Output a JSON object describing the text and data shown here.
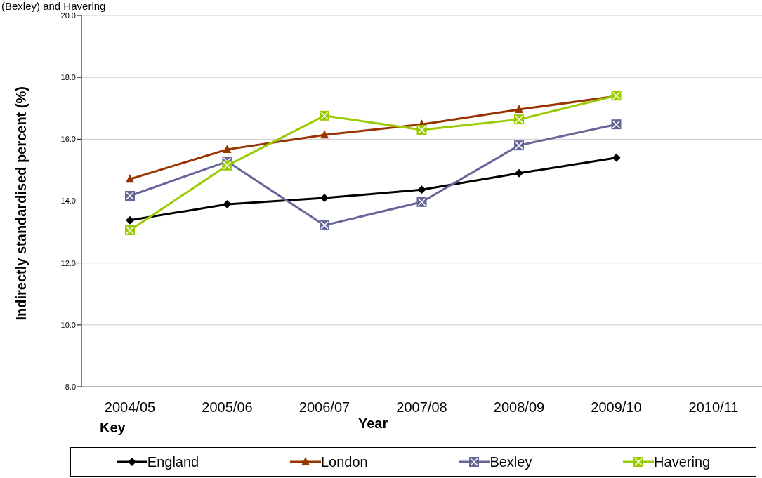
{
  "chart_data": {
    "type": "line",
    "title": "(Bexley) and Havering",
    "xlabel": "Year",
    "ylabel": "Indirectly standardised percent (%)",
    "legend_title": "Key",
    "categories": [
      "2004/05",
      "2005/06",
      "2006/07",
      "2007/08",
      "2008/09",
      "2009/10",
      "2010/11"
    ],
    "series": [
      {
        "name": "England",
        "color": "#000000",
        "marker": "diamond",
        "values": [
          13.38,
          13.9,
          14.1,
          14.37,
          14.9,
          15.4,
          null
        ]
      },
      {
        "name": "London",
        "color": "#993300",
        "marker": "triangle",
        "values": [
          14.71,
          15.67,
          16.14,
          16.48,
          16.96,
          17.39,
          null
        ]
      },
      {
        "name": "Bexley",
        "color": "#666699",
        "marker": "square",
        "values": [
          14.17,
          15.28,
          13.22,
          13.97,
          15.8,
          16.48,
          null
        ]
      },
      {
        "name": "Havering",
        "color": "#99cc00",
        "marker": "square",
        "values": [
          13.06,
          15.15,
          16.76,
          16.3,
          16.64,
          17.41,
          null
        ]
      }
    ],
    "ylim": [
      8,
      20
    ],
    "yticks": [
      {
        "value": 8,
        "label": "8.0"
      },
      {
        "value": 10,
        "label": "10.0"
      },
      {
        "value": 12,
        "label": "12.0"
      },
      {
        "value": 14,
        "label": "14.0"
      },
      {
        "value": 16,
        "label": "16.0"
      },
      {
        "value": 18,
        "label": "18.0"
      },
      {
        "value": 20,
        "label": "20.0"
      }
    ],
    "grid": "y",
    "legend": "bottom",
    "line_style": "solid"
  }
}
